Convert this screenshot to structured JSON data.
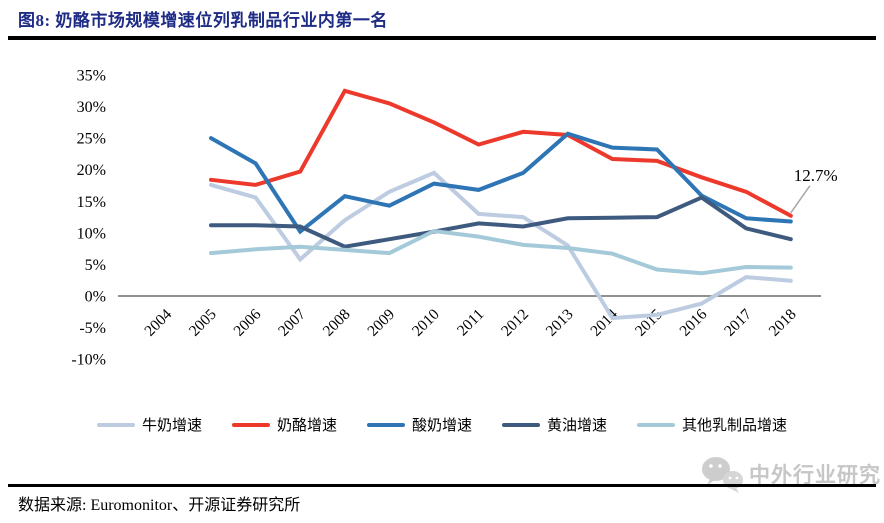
{
  "header": {
    "title": "图8:  奶酪市场规模增速位列乳制品行业内第一名"
  },
  "footer": {
    "source_label": "数据来源: Euromonitor、开源证券研究所"
  },
  "watermark": {
    "icon": "chat-bubbles-icon",
    "text": "中外行业研究"
  },
  "colors": {
    "title_navy": "#1F2C86",
    "axis_gray": "#808080",
    "leader_gray": "#A6A6A6",
    "watermark_gray": "#C6C6C6",
    "rule_black": "#000000"
  },
  "chart_data": {
    "type": "line",
    "title": "奶酪市场规模增速位列乳制品行业内第一名",
    "xlabel": "",
    "ylabel": "",
    "categories": [
      2004,
      2005,
      2006,
      2007,
      2008,
      2009,
      2010,
      2011,
      2012,
      2013,
      2014,
      2015,
      2016,
      2017,
      2018
    ],
    "ylim": [
      -10,
      35
    ],
    "ytick_step": 5,
    "ytick_suffix": "%",
    "grid": false,
    "legend_position": "bottom",
    "series": [
      {
        "key": "milk-growth",
        "name": "牛奶增速",
        "color": "#BDCCE1",
        "values": [
          null,
          17.6,
          15.6,
          5.8,
          12.0,
          16.5,
          19.5,
          13.0,
          12.5,
          8.0,
          -3.5,
          -3.0,
          -1.2,
          3.0,
          2.4
        ]
      },
      {
        "key": "cheese-growth",
        "name": "奶酪增速",
        "color": "#ED392B",
        "values": [
          null,
          18.4,
          17.6,
          19.7,
          32.5,
          30.5,
          27.5,
          24.0,
          26.0,
          25.5,
          21.7,
          21.4,
          18.8,
          16.5,
          12.7
        ]
      },
      {
        "key": "yogurt-growth",
        "name": "酸奶增速",
        "color": "#2E75B5",
        "values": [
          null,
          25.0,
          21.0,
          10.2,
          15.8,
          14.3,
          17.8,
          16.8,
          19.5,
          25.7,
          23.5,
          23.2,
          15.9,
          12.3,
          11.8
        ]
      },
      {
        "key": "butter-growth",
        "name": "黄油增速",
        "color": "#3E5A7E",
        "values": [
          null,
          11.2,
          11.2,
          11.0,
          7.8,
          9.0,
          10.2,
          11.5,
          11.0,
          12.3,
          12.4,
          12.5,
          15.6,
          10.7,
          9.0
        ]
      },
      {
        "key": "other-dairy-growth",
        "name": "其他乳制品增速",
        "color": "#A4C9D9",
        "values": [
          null,
          6.8,
          7.4,
          7.8,
          7.3,
          6.8,
          10.3,
          9.4,
          8.1,
          7.6,
          6.7,
          4.2,
          3.6,
          4.6,
          4.5
        ]
      }
    ],
    "annotation": {
      "text": "12.7%",
      "series": "奶酪增速",
      "year": 2018
    }
  }
}
